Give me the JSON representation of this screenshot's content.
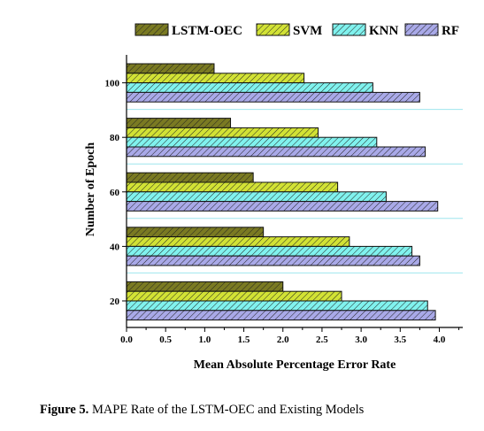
{
  "chart_data": {
    "type": "bar",
    "orientation": "horizontal",
    "xlabel": "Mean Absolute Percentage Error Rate",
    "ylabel": "Number of Epoch",
    "xlim": [
      0,
      4.3
    ],
    "xticks": [
      "0.0",
      "0.5",
      "1.0",
      "1.5",
      "2.0",
      "2.5",
      "3.0",
      "3.5",
      "4.0"
    ],
    "categories": [
      "100",
      "80",
      "60",
      "40",
      "20"
    ],
    "legend_position": "top",
    "grid": false,
    "series": [
      {
        "name": "LSTM-OEC",
        "color": "#7a7a22",
        "values": [
          1.12,
          1.33,
          1.62,
          1.75,
          2.0
        ]
      },
      {
        "name": "SVM",
        "color": "#d2e235",
        "values": [
          2.27,
          2.45,
          2.7,
          2.85,
          2.75
        ]
      },
      {
        "name": "KNN",
        "color": "#80f2ee",
        "values": [
          3.15,
          3.2,
          3.32,
          3.65,
          3.85
        ]
      },
      {
        "name": "RF",
        "color": "#a9a9e8",
        "values": [
          3.75,
          3.82,
          3.98,
          3.75,
          3.95
        ]
      }
    ]
  },
  "caption": {
    "label": "Figure 5.",
    "text": " MAPE Rate of the LSTM-OEC and Existing Models"
  }
}
